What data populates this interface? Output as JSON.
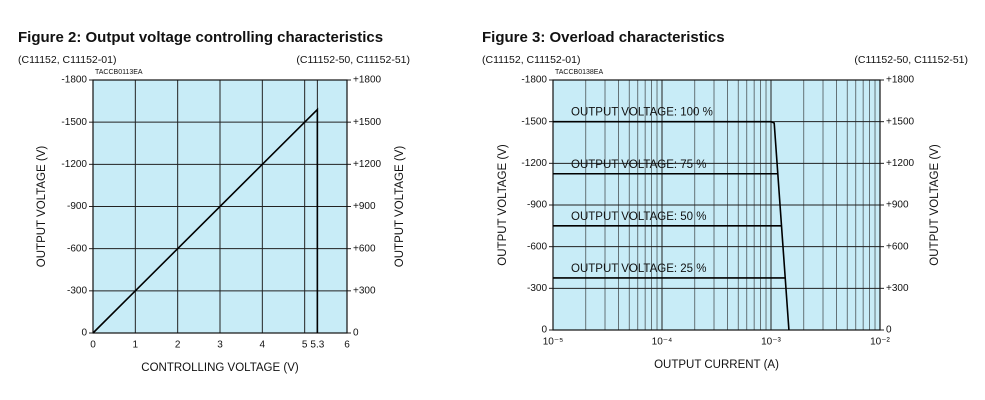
{
  "chart_data": [
    {
      "type": "line",
      "title": "Figure 2: Output voltage controlling characteristics",
      "subtitle_left": "(C11152, C11152-01)",
      "subtitle_right": "(C11152-50, C11152-51)",
      "code": "TACCB0113EA",
      "xlabel": "CONTROLLING VOLTAGE (V)",
      "ylabel": "OUTPUT VOLTAGE (V)",
      "y2label": "OUTPUT VOLTAGE (V)",
      "background": "#c8ecf7",
      "grid": true,
      "xlim": [
        0,
        6
      ],
      "xticks": [
        0,
        1,
        2,
        3,
        4,
        5,
        5.3,
        6
      ],
      "ylim": [
        0,
        -1800
      ],
      "yticks": [
        0,
        -300,
        -600,
        -900,
        -1200,
        -1500,
        -1800
      ],
      "y2lim": [
        0,
        1800
      ],
      "y2ticks": [
        0,
        {
          "value": 300,
          "label": "+300"
        },
        {
          "value": 600,
          "label": "+600"
        },
        {
          "value": 900,
          "label": "+900"
        },
        {
          "value": 1200,
          "label": "+1200"
        },
        {
          "value": 1500,
          "label": "+1500"
        },
        {
          "value": 1800,
          "label": "+1800"
        }
      ],
      "series": [
        {
          "color": "#000000",
          "x": [
            0,
            5.3,
            5.3
          ],
          "values": [
            0,
            -1590,
            0
          ]
        }
      ]
    },
    {
      "type": "line",
      "title": "Figure 3: Overload characteristics",
      "subtitle_left": "(C11152, C11152-01)",
      "subtitle_right": "(C11152-50, C11152-51)",
      "code": "TACCB0138EA",
      "xlabel": "OUTPUT CURRENT (A)",
      "ylabel": "OUTPUT VOLTAGE (V)",
      "y2label": "OUTPUT VOLTAGE (V)",
      "background": "#c8ecf7",
      "grid": true,
      "xscale": "log",
      "xlim": [
        1e-05,
        0.01
      ],
      "xticks": [
        {
          "value": 1e-05,
          "label": "10⁻⁵"
        },
        {
          "value": 0.0001,
          "label": "10⁻⁴"
        },
        {
          "value": 0.001,
          "label": "10⁻³"
        },
        {
          "value": 0.01,
          "label": "10⁻²"
        }
      ],
      "ylim": [
        0,
        -1800
      ],
      "yticks": [
        0,
        -300,
        -600,
        -900,
        -1200,
        -1500,
        -1800
      ],
      "y2lim": [
        0,
        1800
      ],
      "y2ticks": [
        0,
        {
          "value": 300,
          "label": "+300"
        },
        {
          "value": 600,
          "label": "+600"
        },
        {
          "value": 900,
          "label": "+900"
        },
        {
          "value": 1200,
          "label": "+1200"
        },
        {
          "value": 1500,
          "label": "+1500"
        },
        {
          "value": 1800,
          "label": "+1800"
        }
      ],
      "series": [
        {
          "name": "OUTPUT VOLTAGE: 100 %",
          "color": "#000000",
          "x": [
            1e-05,
            0.001,
            0.00107,
            0.00146
          ],
          "values": [
            -1500,
            -1500,
            -1490,
            0
          ]
        },
        {
          "name": "OUTPUT VOLTAGE: 75 %",
          "color": "#000000",
          "x": [
            1e-05,
            0.00117
          ],
          "values": [
            -1125,
            -1125
          ]
        },
        {
          "name": "OUTPUT VOLTAGE: 50 %",
          "color": "#000000",
          "x": [
            1e-05,
            0.00126
          ],
          "values": [
            -750,
            -750
          ]
        },
        {
          "name": "OUTPUT VOLTAGE: 25 %",
          "color": "#000000",
          "x": [
            1e-05,
            0.00136
          ],
          "values": [
            -375,
            -375
          ]
        }
      ]
    }
  ]
}
